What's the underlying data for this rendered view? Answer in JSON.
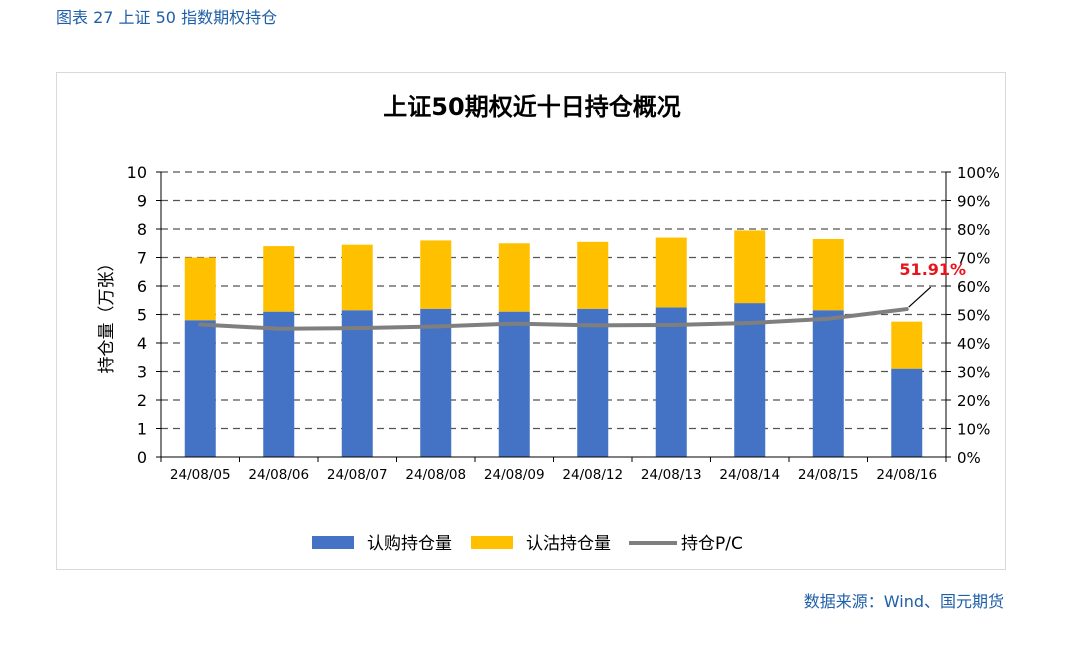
{
  "figure_caption": "图表 27 上证 50 指数期权持仓",
  "source": "数据来源：Wind、国元期货",
  "colors": {
    "call": "#4472c4",
    "put": "#ffc000",
    "pc_line": "#7f7f7f",
    "annotation": "#e8131b",
    "caption": "#1f5fa8"
  },
  "chart_data": {
    "type": "bar",
    "title": "上证50期权近十日持仓概况",
    "ylabel": "持仓量（万张）",
    "ylabel_right": "",
    "ylim": [
      0,
      10
    ],
    "ylim_right": [
      0,
      1
    ],
    "yticks": [
      "0",
      "1",
      "2",
      "3",
      "4",
      "5",
      "6",
      "7",
      "8",
      "9",
      "10"
    ],
    "yticks_right": [
      "0%",
      "10%",
      "20%",
      "30%",
      "40%",
      "50%",
      "60%",
      "70%",
      "80%",
      "90%",
      "100%"
    ],
    "grid": true,
    "legend_position": "bottom",
    "stacked": true,
    "categories": [
      "24/08/05",
      "24/08/06",
      "24/08/07",
      "24/08/08",
      "24/08/09",
      "24/08/12",
      "24/08/13",
      "24/08/14",
      "24/08/15",
      "24/08/16"
    ],
    "series": [
      {
        "name": "认购持仓量",
        "kind": "bar",
        "axis": "left",
        "values": [
          4.8,
          5.1,
          5.15,
          5.2,
          5.1,
          5.2,
          5.25,
          5.4,
          5.15,
          3.1
        ]
      },
      {
        "name": "认沽持仓量",
        "kind": "bar",
        "axis": "left",
        "values": [
          2.2,
          2.3,
          2.3,
          2.4,
          2.4,
          2.35,
          2.45,
          2.55,
          2.5,
          1.65
        ]
      },
      {
        "name": "持仓P/C",
        "kind": "line",
        "axis": "right",
        "values": [
          0.465,
          0.45,
          0.452,
          0.458,
          0.468,
          0.462,
          0.463,
          0.47,
          0.485,
          0.5191
        ]
      }
    ],
    "annotation": {
      "text": "51.91%",
      "series": "持仓P/C",
      "index": 9
    }
  }
}
